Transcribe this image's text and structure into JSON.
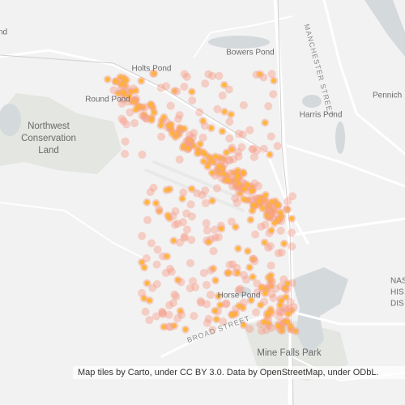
{
  "map": {
    "labels": {
      "corner": "nd",
      "holts_pond": "Holts Pond",
      "bowers_pond": "Bowers Pond",
      "round_pond": "Round Pond",
      "conservation": [
        "Northwest",
        "Conservation",
        "Land"
      ],
      "harris_pond": "Harris Pond",
      "pennichuck": "Pennich",
      "manchester": "MANCHESTER STREET",
      "horse_pond": "Horse Pond",
      "broad_street": "BROAD STREET",
      "mine_falls": "Mine Falls Park",
      "nashua": [
        "NAS",
        "HIS",
        "DIS"
      ]
    },
    "attribution": "Map tiles by Carto, under CC BY 3.0. Data by OpenStreetMap, under ODbL."
  }
}
